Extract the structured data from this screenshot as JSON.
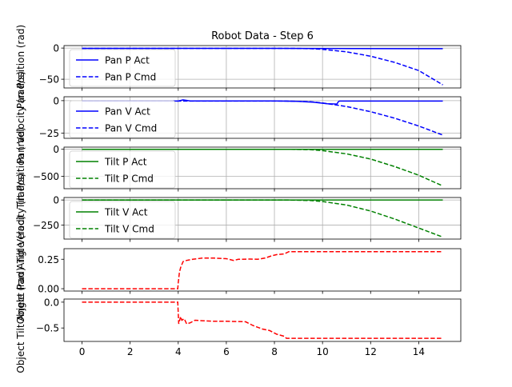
{
  "title": "Robot Data - Step 6",
  "xticks": [
    0,
    2,
    4,
    6,
    8,
    10,
    12,
    14
  ],
  "xlim": [
    -0.75,
    15.75
  ],
  "chart_data": [
    {
      "type": "line",
      "ylabel": "Pan Position (rad)",
      "ylim": [
        -64,
        4
      ],
      "yticks": [
        0,
        -50
      ],
      "grid": true,
      "legend": "upper-left",
      "series": [
        {
          "name": "Pan P Act",
          "color": "#0000ff",
          "style": "solid",
          "x": [
            0,
            8,
            15
          ],
          "y": [
            -0.5,
            -0.5,
            -1.0
          ]
        },
        {
          "name": "Pan P Cmd",
          "color": "#0000ff",
          "style": "dashed",
          "x": [
            0,
            8.8,
            9.5,
            10,
            11,
            12,
            13,
            14,
            15
          ],
          "y": [
            -0.5,
            -0.5,
            -1,
            -2,
            -6,
            -13,
            -23,
            -36,
            -59
          ]
        }
      ]
    },
    {
      "type": "line",
      "ylabel": "Pan Velocity (rad/s)",
      "ylim": [
        -29,
        3
      ],
      "yticks": [
        0,
        -25
      ],
      "grid": true,
      "legend": "upper-left",
      "series": [
        {
          "name": "Pan V Act",
          "color": "#0000ff",
          "style": "solid",
          "x": [
            0,
            4,
            4.2,
            4.5,
            8,
            9,
            9.6,
            10.2,
            10.6,
            10.65,
            10.7,
            15
          ],
          "y": [
            -0.3,
            -0.3,
            0.6,
            -0.2,
            -0.2,
            -0.6,
            -1.2,
            -2.4,
            -2.6,
            -1.0,
            -0.3,
            -0.3
          ]
        },
        {
          "name": "Pan V Cmd",
          "color": "#0000ff",
          "style": "dashed",
          "x": [
            0,
            8.5,
            9.5,
            10,
            11,
            12,
            13,
            14,
            15
          ],
          "y": [
            -0.3,
            -0.3,
            -0.8,
            -1.8,
            -4.5,
            -8.5,
            -13.5,
            -19.5,
            -26.5
          ]
        }
      ]
    },
    {
      "type": "line",
      "ylabel": "Tilt Position (rad)",
      "ylim": [
        -730,
        40
      ],
      "yticks": [
        0,
        -500
      ],
      "grid": true,
      "legend": "upper-left",
      "series": [
        {
          "name": "Tilt P Act",
          "color": "#008000",
          "style": "solid",
          "x": [
            0,
            15
          ],
          "y": [
            0,
            0
          ]
        },
        {
          "name": "Tilt P Cmd",
          "color": "#008000",
          "style": "dashed",
          "x": [
            0,
            8.5,
            9.5,
            10,
            11,
            12,
            13,
            14,
            15
          ],
          "y": [
            0,
            0,
            -8,
            -25,
            -85,
            -180,
            -320,
            -480,
            -680
          ]
        }
      ]
    },
    {
      "type": "line",
      "ylabel": "Tilt Velocity (rad/s)",
      "ylim": [
        -390,
        25
      ],
      "yticks": [
        0,
        -250
      ],
      "grid": true,
      "legend": "upper-left",
      "series": [
        {
          "name": "Tilt V Act",
          "color": "#008000",
          "style": "solid",
          "x": [
            0,
            15
          ],
          "y": [
            0,
            0
          ]
        },
        {
          "name": "Tilt V Cmd",
          "color": "#008000",
          "style": "dashed",
          "x": [
            0,
            8.5,
            9.5,
            10,
            11,
            12,
            13,
            14,
            15
          ],
          "y": [
            0,
            0,
            -5,
            -15,
            -50,
            -110,
            -190,
            -280,
            -370
          ]
        }
      ]
    },
    {
      "type": "line",
      "ylabel": "Object Pan Angle (rad)",
      "ylim": [
        -0.02,
        0.34
      ],
      "yticks": [
        0.25,
        0.0
      ],
      "yticklabels": [
        "0.25",
        "0.00"
      ],
      "grid": false,
      "legend": "none",
      "series": [
        {
          "color": "#ff0000",
          "style": "dashed",
          "x": [
            0,
            3.98,
            4.0,
            4.05,
            4.1,
            4.2,
            4.35,
            4.6,
            5,
            5.5,
            6,
            6.3,
            6.5,
            7,
            7.3,
            7.6,
            7.9,
            8.1,
            8.4,
            8.6,
            9,
            15
          ],
          "y": [
            0,
            0,
            0.05,
            0.14,
            0.18,
            0.23,
            0.24,
            0.25,
            0.26,
            0.26,
            0.255,
            0.24,
            0.25,
            0.252,
            0.25,
            0.26,
            0.28,
            0.29,
            0.295,
            0.315,
            0.315,
            0.315
          ]
        }
      ]
    },
    {
      "type": "line",
      "ylabel": "Object Tilt Angle (rad)",
      "ylim": [
        -0.76,
        0.06
      ],
      "yticks": [
        0.0,
        -0.5
      ],
      "yticklabels": [
        "0.0",
        "−0.5"
      ],
      "grid": false,
      "legend": "none",
      "series": [
        {
          "color": "#ff0000",
          "style": "dashed",
          "x": [
            0,
            3.98,
            4.02,
            4.1,
            4.15,
            4.25,
            4.35,
            4.5,
            4.7,
            5,
            5.5,
            6,
            6.8,
            7.1,
            7.5,
            7.8,
            8.1,
            8.4,
            8.5,
            9,
            15
          ],
          "y": [
            0,
            0,
            -0.42,
            -0.28,
            -0.35,
            -0.32,
            -0.42,
            -0.4,
            -0.35,
            -0.36,
            -0.37,
            -0.37,
            -0.38,
            -0.45,
            -0.52,
            -0.55,
            -0.62,
            -0.66,
            -0.7,
            -0.7,
            -0.7
          ]
        }
      ]
    }
  ]
}
